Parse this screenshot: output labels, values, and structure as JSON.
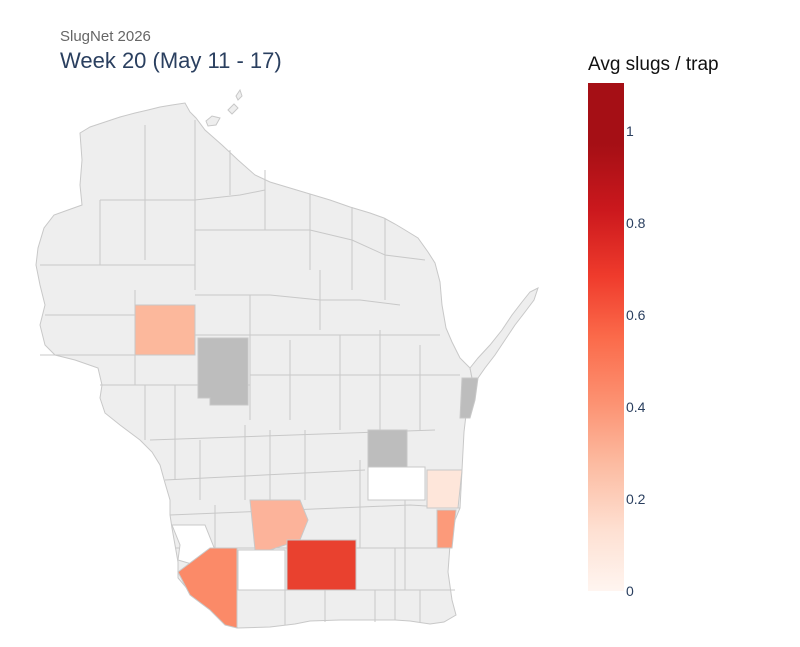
{
  "header": {
    "subtitle": "SlugNet 2026",
    "title": "Week 20 (May 11 - 17)"
  },
  "colorbar": {
    "title": "Avg slugs / trap",
    "min": 0,
    "max": 1.1,
    "ticks": [
      "0",
      "0.2",
      "0.4",
      "0.6",
      "0.8",
      "1"
    ],
    "colorscale": [
      "#fff5f0",
      "#fee0d2",
      "#fcbba1",
      "#fc9272",
      "#fb6a4a",
      "#ef3b2c",
      "#cb181d",
      "#a50f15"
    ]
  },
  "map": {
    "region": "Wisconsin counties",
    "no_data_color": "#eeeeee",
    "no_trap_color": "#bdbdbd",
    "border_color": "#c8c8c8",
    "county_values": [
      {
        "county": "Chippewa (approx.)",
        "value": 0.22
      },
      {
        "county": "Clark (approx.)",
        "value": null,
        "status": "reported-no-value"
      },
      {
        "county": "Kewaunee (approx.)",
        "value": null,
        "status": "reported-no-value"
      },
      {
        "county": "Calumet (approx.)",
        "value": null,
        "status": "reported-no-value"
      },
      {
        "county": "Fond du Lac (approx.)",
        "value": 0
      },
      {
        "county": "Sheboygan (approx.)",
        "value": 0.05
      },
      {
        "county": "Ozaukee (approx.)",
        "value": 0.32
      },
      {
        "county": "Sauk (approx.)",
        "value": 0.22
      },
      {
        "county": "Crawford (approx.)",
        "value": 0
      },
      {
        "county": "Grant (approx.)",
        "value": 0.38
      },
      {
        "county": "Iowa (approx.)",
        "value": 0
      },
      {
        "county": "Dane (approx.)",
        "value": 0.78
      }
    ]
  }
}
